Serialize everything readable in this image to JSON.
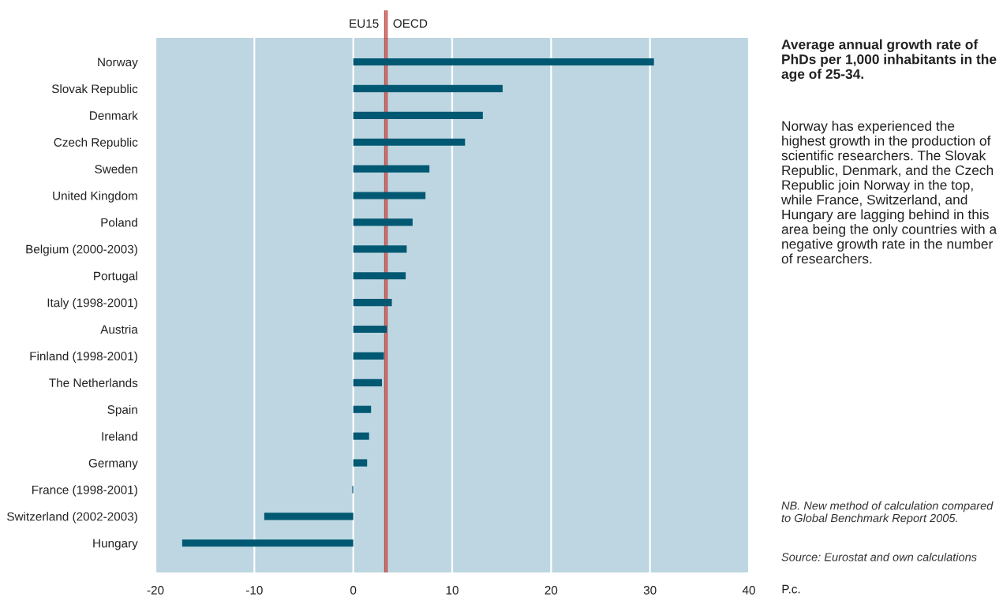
{
  "chart_data": {
    "type": "bar",
    "orientation": "horizontal",
    "categories": [
      "Norway",
      "Slovak Republic",
      "Denmark",
      "Czech Republic",
      "Sweden",
      "United Kingdom",
      "Poland",
      "Belgium (2000-2003)",
      "Portugal",
      "Italy (1998-2001)",
      "Austria",
      "Finland (1998-2001)",
      "The Netherlands",
      "Spain",
      "Ireland",
      "Germany",
      "France (1998-2001)",
      "Switzerland (2002-2003)",
      "Hungary"
    ],
    "values": [
      30.4,
      15.1,
      13.1,
      11.3,
      7.7,
      7.3,
      6.0,
      5.4,
      5.3,
      3.9,
      3.4,
      3.1,
      2.9,
      1.8,
      1.6,
      1.4,
      -0.1,
      -9.0,
      -17.3
    ],
    "color": "#005873",
    "xlim": [
      -20,
      40
    ],
    "xticks": [
      -20,
      -10,
      0,
      10,
      20,
      30,
      40
    ],
    "xlabel": "P.c.",
    "grid": "x",
    "ref_lines": [
      {
        "axis": "x",
        "value": 3.2,
        "label": "EU15",
        "color": "#c0504d"
      },
      {
        "axis": "x",
        "value": 3.4,
        "label": "OECD",
        "color": "#c0504d"
      }
    ],
    "annotations": [
      "Average annual growth rate of PhDs per 1,000 inhabitants in the age of 25-34.",
      "Norway has experienced the highest growth in the production of scientific researchers. The Slovak Republic, Denmark, and the Czech Republic join Norway in the top, while France, Switzerland, and Hungary are lagging behind in this area being the only countries with a negative growth rate in the number of researchers.",
      "NB. New method of calculation compared to Global Benchmark Report 2005.",
      "Source: Eurostat and own calculations"
    ]
  }
}
